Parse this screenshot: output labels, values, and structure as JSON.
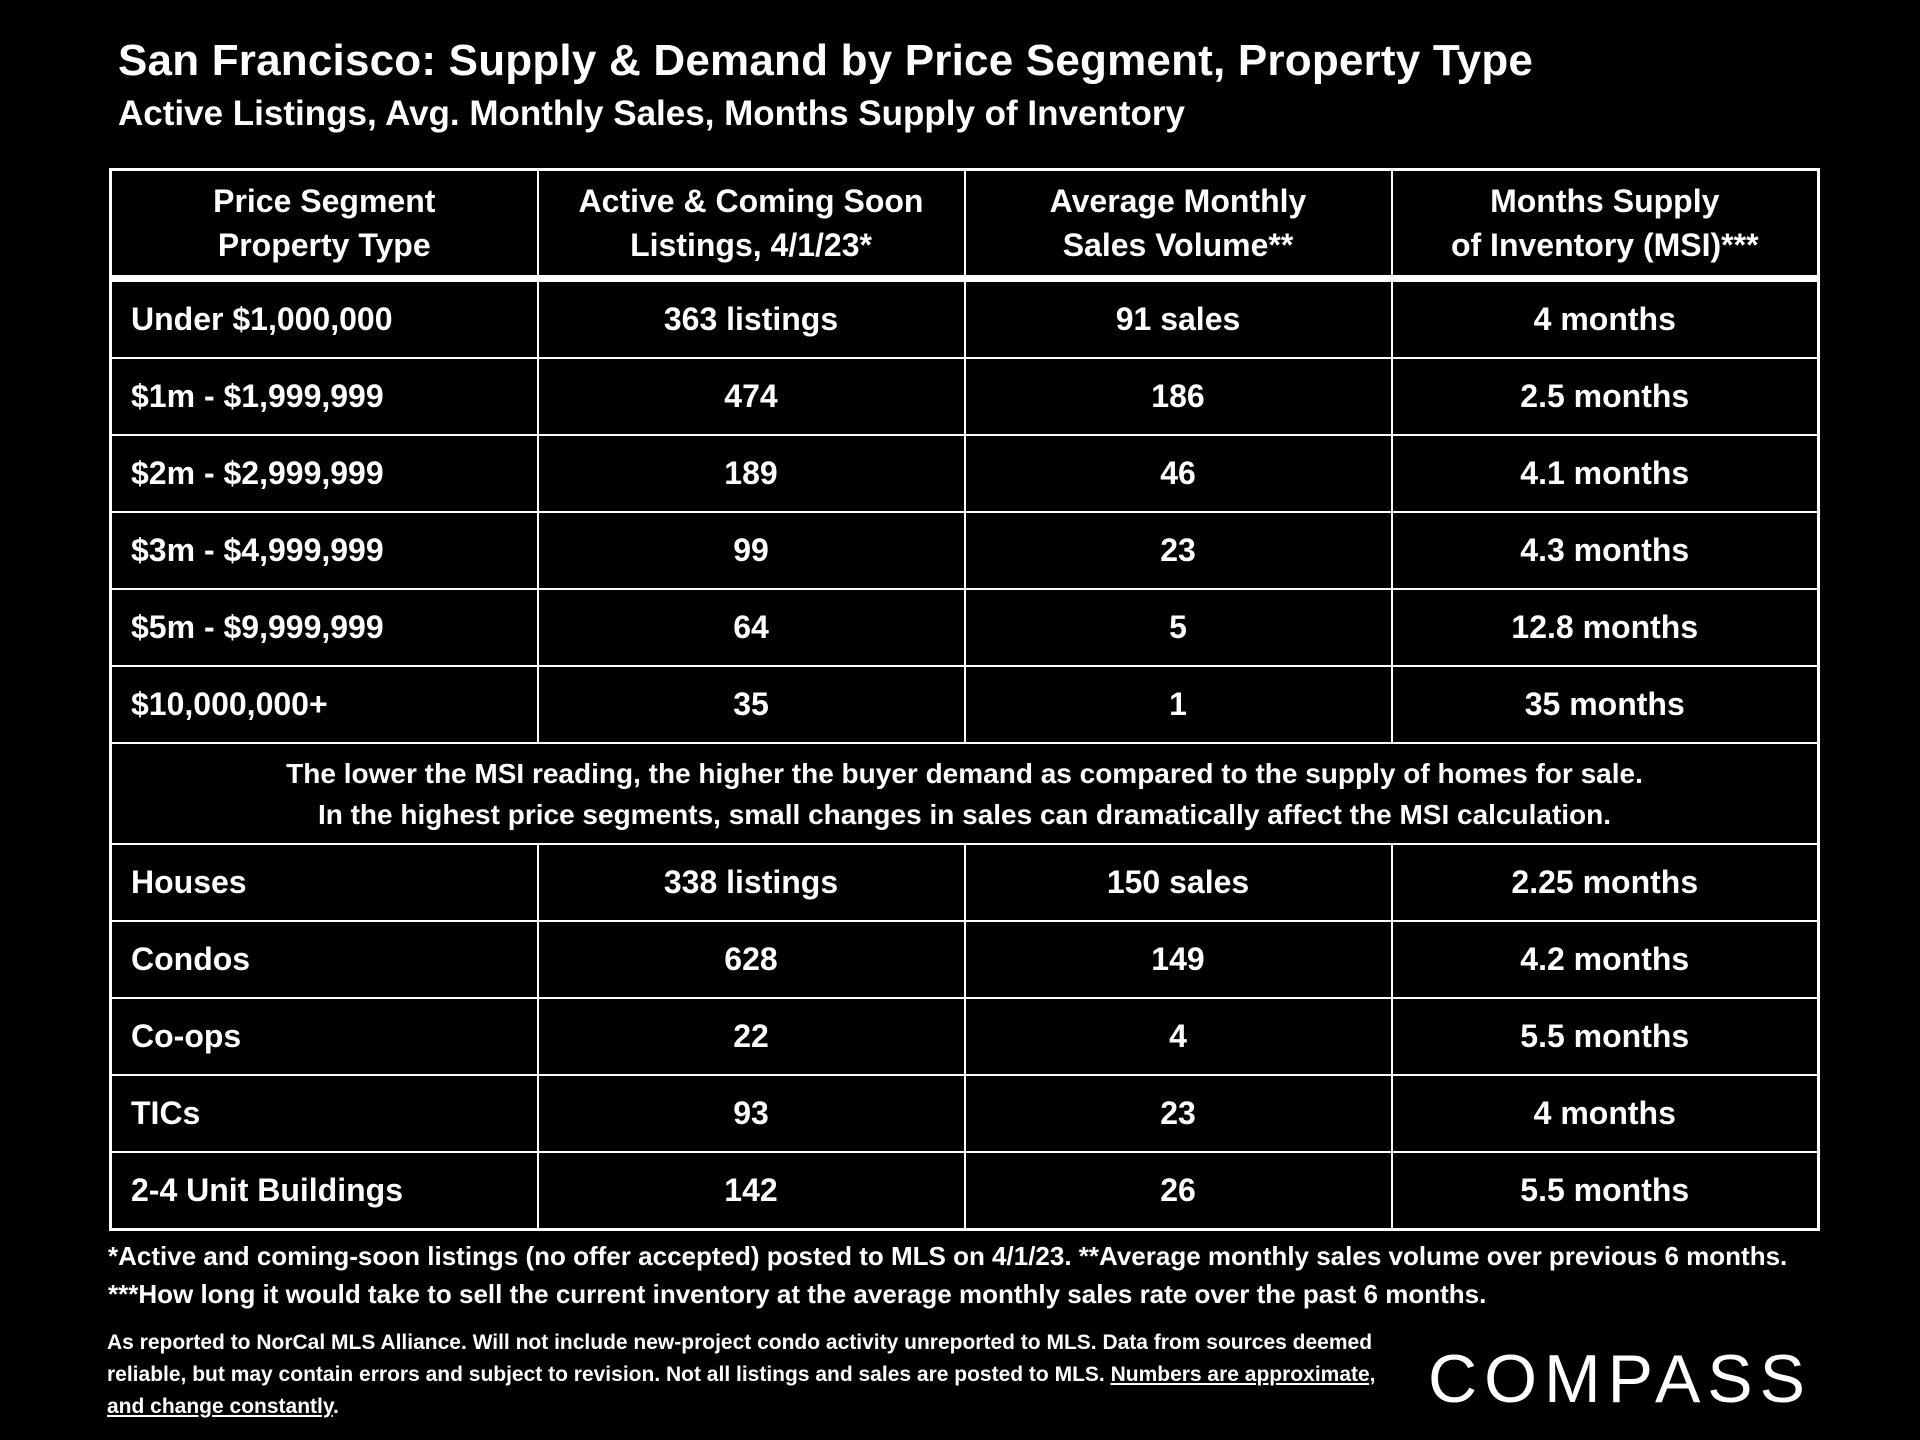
{
  "header": {
    "title": "San Francisco: Supply & Demand by Price Segment, Property Type",
    "subtitle": "Active Listings, Avg. Monthly Sales, Months Supply of Inventory"
  },
  "table": {
    "columns": [
      {
        "line1": "Price Segment",
        "line2": "Property Type"
      },
      {
        "line1": "Active & Coming Soon",
        "line2": "Listings, 4/1/23*"
      },
      {
        "line1": "Average Monthly",
        "line2": "Sales Volume**"
      },
      {
        "line1": "Months Supply",
        "line2": "of Inventory (MSI)***"
      }
    ],
    "price_rows": [
      {
        "segment": "Under $1,000,000",
        "listings": "363 listings",
        "sales": "91 sales",
        "msi": "4 months"
      },
      {
        "segment": "$1m - $1,999,999",
        "listings": "474",
        "sales": "186",
        "msi": "2.5 months"
      },
      {
        "segment": "$2m - $2,999,999",
        "listings": "189",
        "sales": "46",
        "msi": "4.1 months"
      },
      {
        "segment": "$3m - $4,999,999",
        "listings": "99",
        "sales": "23",
        "msi": "4.3 months"
      },
      {
        "segment": "$5m - $9,999,999",
        "listings": "64",
        "sales": "5",
        "msi": "12.8 months"
      },
      {
        "segment": "$10,000,000+",
        "listings": "35",
        "sales": "1",
        "msi": "35 months"
      }
    ],
    "note": {
      "line1": "The lower the MSI reading, the higher the buyer demand as compared to the supply of homes for sale.",
      "line2": "In the highest price segments, small changes in sales can dramatically affect the MSI calculation."
    },
    "type_rows": [
      {
        "segment": "Houses",
        "listings": "338 listings",
        "sales": "150 sales",
        "msi": "2.25 months"
      },
      {
        "segment": "Condos",
        "listings": "628",
        "sales": "149",
        "msi": "4.2 months"
      },
      {
        "segment": "Co-ops",
        "listings": "22",
        "sales": "4",
        "msi": "5.5 months"
      },
      {
        "segment": "TICs",
        "listings": "93",
        "sales": "23",
        "msi": "4 months"
      },
      {
        "segment": "2-4 Unit Buildings",
        "listings": "142",
        "sales": "26",
        "msi": "5.5 months"
      }
    ]
  },
  "footnote": "*Active and coming-soon listings (no offer accepted) posted to MLS on 4/1/23. **Average monthly sales volume over previous 6 months. ***How long it would take to sell the current inventory at the average monthly sales rate over the past 6 months.",
  "source": {
    "text": "As reported to NorCal MLS Alliance.  Will not include new-project condo activity unreported to MLS. Data from sources deemed reliable, but may contain errors and subject to revision.  Not all listings and sales are posted to MLS. ",
    "underlined": "Numbers are approximate, and change constantly",
    "end": "."
  },
  "logo": "COMPASS"
}
